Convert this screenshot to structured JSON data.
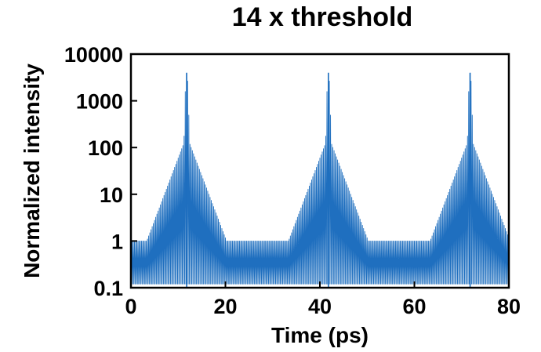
{
  "chart_data": {
    "type": "line",
    "title": "14 x threshold",
    "xlabel": "Time (ps)",
    "ylabel": "Normalized intensity",
    "xlim": [
      0,
      80
    ],
    "ylim": [
      0.1,
      10000
    ],
    "yscale": "log",
    "grid": false,
    "legend": "none",
    "x_ticks": [
      "0",
      "20",
      "40",
      "60",
      "80"
    ],
    "y_ticks": [
      "0.1",
      "1",
      "10",
      "100",
      "1000",
      "10000"
    ],
    "series": [
      {
        "color": "#1f6fbf",
        "pulse_period_ps": 30,
        "peaks": [
          {
            "x": 11.8,
            "y": 4000
          },
          {
            "x": 41.8,
            "y": 4000
          },
          {
            "x": 71.8,
            "y": 4000
          }
        ],
        "envelope_minimum": [
          {
            "x": 26,
            "y": 0.4
          },
          {
            "x": 56,
            "y": 0.4
          }
        ],
        "baseline_floor": 0.12
      }
    ]
  }
}
